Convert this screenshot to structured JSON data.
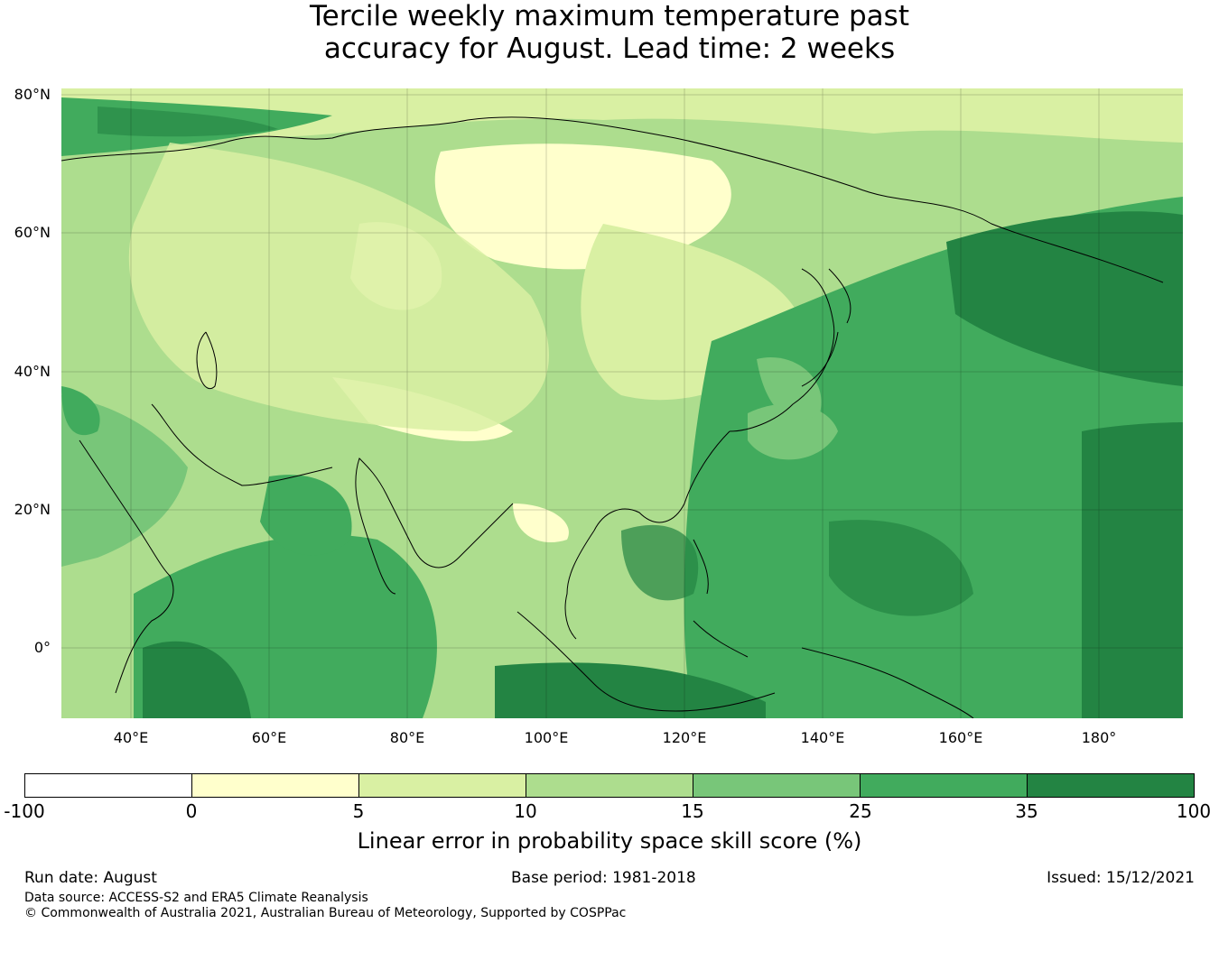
{
  "title": {
    "line1": "Tercile weekly maximum temperature past",
    "line2": "accuracy for August. Lead time: 2 weeks"
  },
  "map": {
    "region": "Asia and western Pacific",
    "lat_labels": [
      "80°N",
      "60°N",
      "40°N",
      "20°N",
      "0°"
    ],
    "lon_labels": [
      "40°E",
      "60°E",
      "80°E",
      "100°E",
      "120°E",
      "140°E",
      "160°E",
      "180°"
    ],
    "lat_range": [
      -10,
      80
    ],
    "lon_range": [
      30,
      192
    ],
    "gridlines": true
  },
  "legend": {
    "ticks": [
      "-100",
      "0",
      "5",
      "10",
      "15",
      "25",
      "35",
      "100"
    ],
    "colors": [
      "#ffffff",
      "#ffffcc",
      "#d9f0a3",
      "#addd8e",
      "#78c679",
      "#41ab5d",
      "#238443"
    ],
    "label": "Linear error in probability space skill score (%)"
  },
  "footer": {
    "run_date": "Run date: August",
    "base_period": "Base period: 1981-2018",
    "issued": "Issued: 15/12/2021",
    "data_source": "Data source: ACCESS-S2 and ERA5 Climate Reanalysis",
    "copyright": "© Commonwealth of Australia 2021, Australian Bureau of Meteorology, Supported by COSPPac"
  }
}
